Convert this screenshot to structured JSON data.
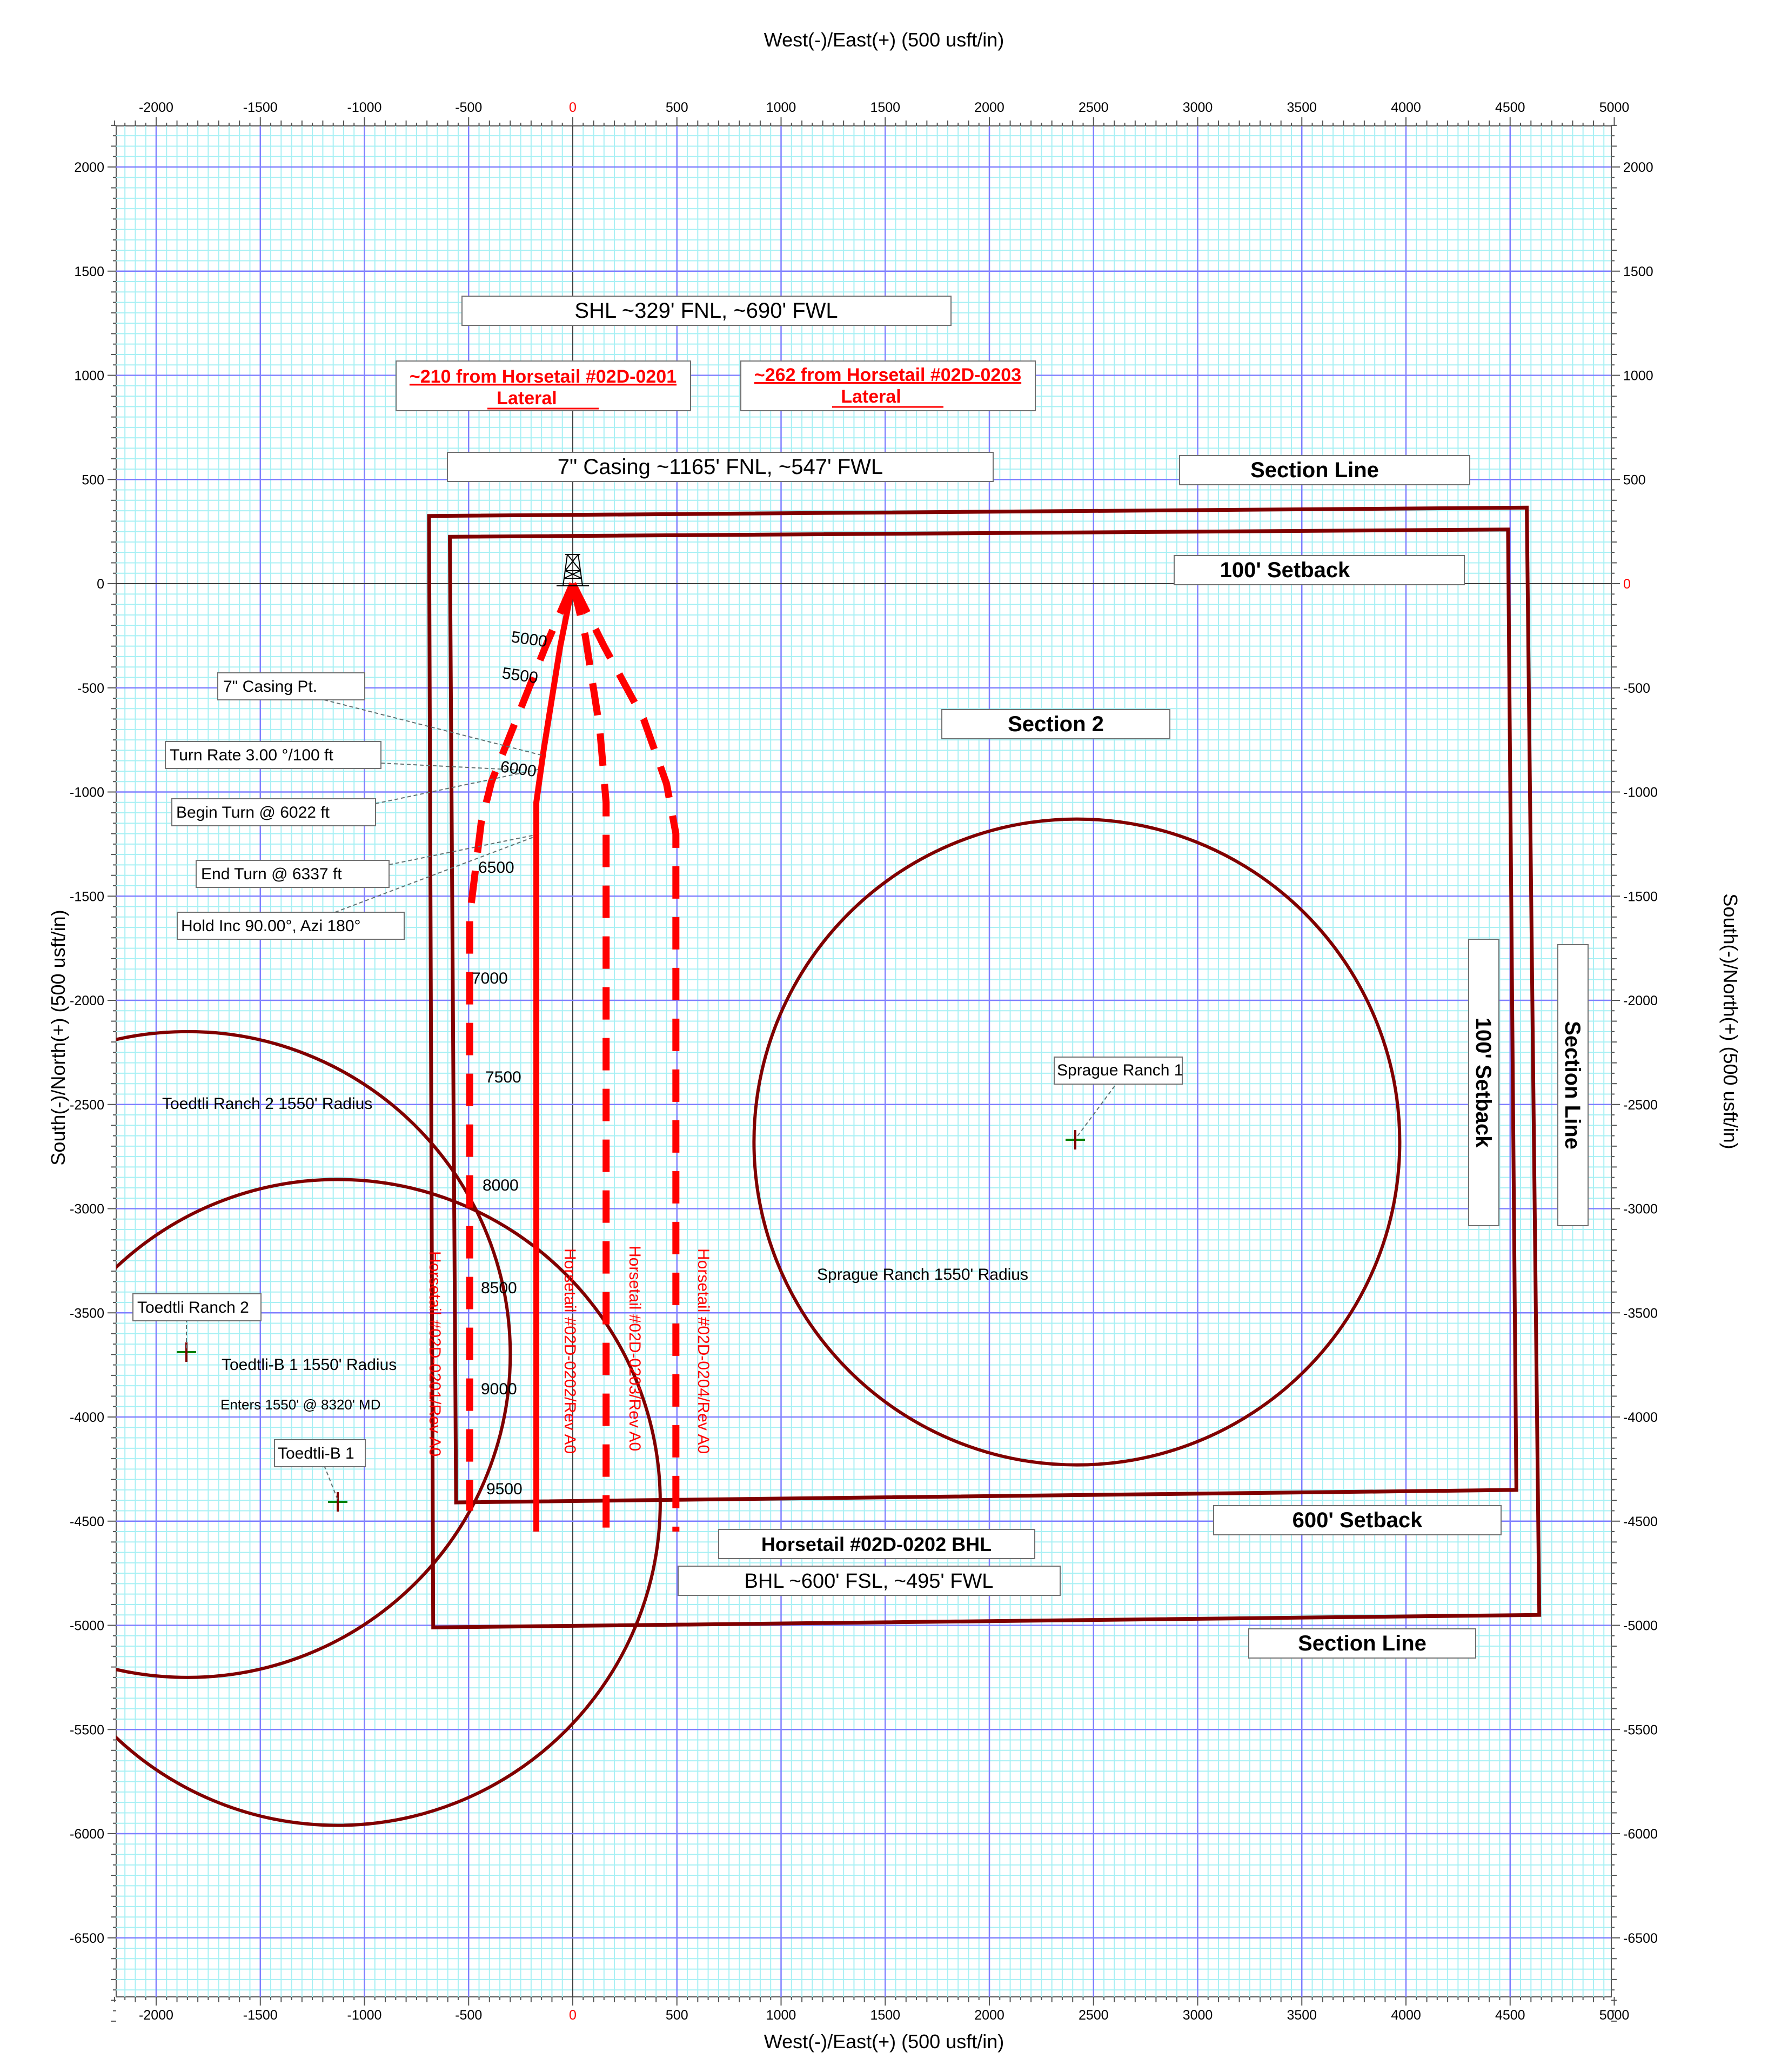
{
  "axes": {
    "x_title": "West(-)/East(+) (500 usft/in)",
    "y_title_left": "South(-)/North(+) (500 usft/in)",
    "y_title_right": "South(-)/North(+) (500 usft/in)",
    "x_range": [
      -2200,
      5000
    ],
    "y_range": [
      -6900,
      2200
    ],
    "x_ticks": [
      "-2000",
      "-1500",
      "-1000",
      "-500",
      "0",
      "500",
      "1000",
      "1500",
      "2000",
      "2500",
      "3000",
      "3500",
      "4000",
      "4500",
      "5000"
    ],
    "y_ticks": [
      "2000",
      "1500",
      "1000",
      "500",
      "0",
      "-500",
      "-1000",
      "-1500",
      "-2000",
      "-2500",
      "-3000",
      "-3500",
      "-4000",
      "-4500",
      "-5000",
      "-5500",
      "-6000",
      "-6500"
    ],
    "major_grid_step": 500,
    "minor_grid_step": 50,
    "colors": {
      "major_grid": "#8080ff",
      "minor_grid": "#a8f0f4",
      "zero_tick": "#ff0000"
    }
  },
  "labels": {
    "shl": "SHL  ~329' FNL,  ~690' FWL",
    "from_0201_line1": "~210  from Horsetail #02D-0201",
    "from_0201_line2": "Lateral",
    "from_0203_line1": "~262  from Horsetail #02D-0203",
    "from_0203_line2": "Lateral",
    "casing": "7\" Casing ~1165' FNL, ~547' FWL",
    "section_line_top": "Section Line",
    "setback_100_top": "100' Setback",
    "section_2": "Section 2",
    "casing_pt": "7\" Casing Pt.",
    "turn_rate": "Turn Rate 3.00 °/100 ft",
    "begin_turn": "Begin Turn @ 6022 ft",
    "end_turn": "End Turn @ 6337 ft",
    "hold_inc": "Hold Inc 90.00°, Azi 180°",
    "sprague_ranch_1": "Sprague Ranch 1",
    "sprague_radius": "Sprague Ranch 1550' Radius",
    "setback_100_right": "100' Setback",
    "section_line_right": "Section Line",
    "toedtli_2_radius": "Toedtli Ranch 2   1550' Radius",
    "toedtli_2": "Toedtli Ranch 2",
    "toedtli_b1_radius": "Toedtli-B 1 1550' Radius",
    "enters": "Enters 1550' @ 8320' MD",
    "toedtli_b1": "Toedtli-B  1",
    "setback_600": "600' Setback",
    "bhl_name": "Horsetail #02D-0202 BHL",
    "bhl": "BHL ~600' FSL, ~495' FWL",
    "section_line_bottom": "Section Line"
  },
  "depth_labels": [
    "5000",
    "5500",
    "6000",
    "6500",
    "7000",
    "7500",
    "8000",
    "8500",
    "9000",
    "9500"
  ],
  "wells": [
    {
      "name": "Horsetail #02D-0201/Rev A0",
      "style": "dashed",
      "path": [
        [
          0,
          0
        ],
        [
          -130,
          -300
        ],
        [
          -270,
          -650
        ],
        [
          -390,
          -950
        ],
        [
          -440,
          -1150
        ],
        [
          -495,
          -1600
        ],
        [
          -495,
          -4450
        ]
      ]
    },
    {
      "name": "Horsetail #02D-0202/Rev A0",
      "style": "solid",
      "path": [
        [
          0,
          0
        ],
        [
          -60,
          -300
        ],
        [
          -140,
          -800
        ],
        [
          -175,
          -1050
        ],
        [
          -175,
          -4550
        ]
      ]
    },
    {
      "name": "Horsetail #02D-0203/Rev A0",
      "style": "dashed",
      "path": [
        [
          0,
          0
        ],
        [
          60,
          -250
        ],
        [
          130,
          -700
        ],
        [
          160,
          -1050
        ],
        [
          160,
          -4550
        ]
      ]
    },
    {
      "name": "Horsetail #02D-0204/Rev A0",
      "style": "dashed",
      "path": [
        [
          0,
          0
        ],
        [
          150,
          -300
        ],
        [
          340,
          -650
        ],
        [
          450,
          -960
        ],
        [
          495,
          -1200
        ],
        [
          495,
          -4550
        ]
      ]
    }
  ],
  "circles": [
    {
      "name": "Sprague Ranch 1",
      "center": [
        2420,
        -2680
      ],
      "radius": 1550
    },
    {
      "name": "Toedtli Ranch 2",
      "center": [
        -1850,
        -3700
      ],
      "radius": 1550
    },
    {
      "name": "Toedtli-B 1",
      "center": [
        -1130,
        -4410
      ],
      "radius": 1550
    }
  ],
  "section_outline": [
    [
      -690,
      325
    ],
    [
      4580,
      365
    ],
    [
      4640,
      -4950
    ],
    [
      -670,
      -5010
    ]
  ],
  "setback_outline": [
    [
      -590,
      225
    ],
    [
      4490,
      260
    ],
    [
      4530,
      -4350
    ],
    [
      -560,
      -4410
    ]
  ],
  "colors": {
    "well": "#ff0000",
    "boundary": "#800000",
    "label_text": "#000000"
  }
}
